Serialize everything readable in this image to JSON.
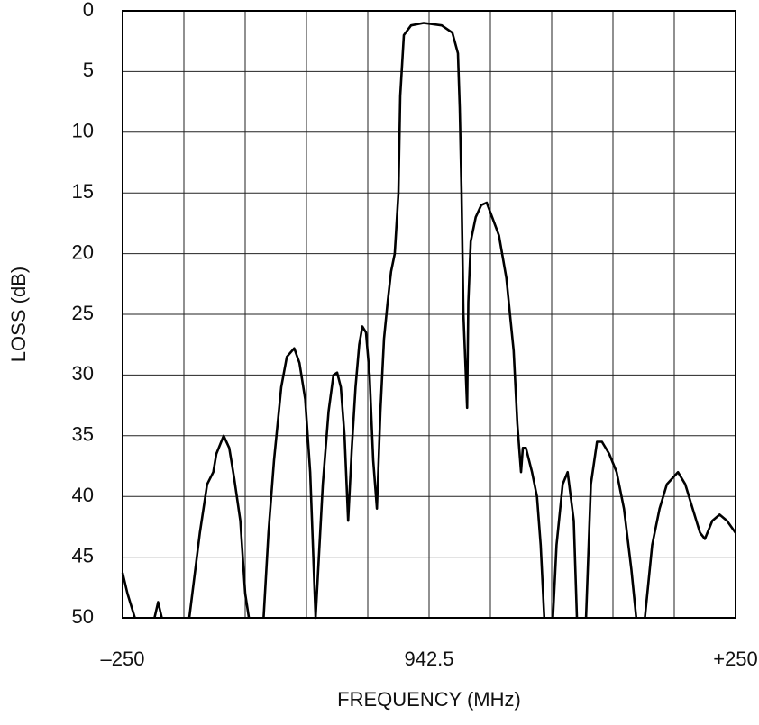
{
  "chart_data": {
    "type": "line",
    "xlabel": "FREQUENCY (MHz)",
    "ylabel": "LOSS (dB)",
    "x": [
      -250,
      -246,
      -240,
      null,
      -224,
      -221,
      -218,
      null,
      -195.6,
      -187,
      -181,
      -176,
      -173.5,
      -167.6,
      -163,
      -159,
      -154,
      -150,
      -147,
      null,
      -135,
      -131,
      -126.5,
      -120.6,
      -116,
      -110,
      -105.7,
      -101,
      -97,
      -92.6,
      -86.7,
      -82,
      -78,
      -75,
      -72,
      -69,
      -66,
      -63,
      -60,
      -57,
      -54.4,
      -51.5,
      -48.5,
      -45.6,
      -42.6,
      -39.7,
      -36.8,
      -33.8,
      -31,
      -28,
      -25,
      -23.5,
      -20.6,
      -14.7,
      -4.4,
      10.3,
      19,
      23.5,
      25,
      26.5,
      28,
      31,
      32,
      34,
      38,
      42.6,
      47,
      51.5,
      57,
      63,
      69,
      72,
      75,
      76.5,
      79,
      84,
      88,
      91,
      94,
      null,
      101,
      104,
      109,
      113,
      118,
      120.6,
      null,
      128,
      132,
      137,
      141,
      147,
      153,
      159,
      165,
      169,
      null,
      176,
      182,
      188,
      194,
      203,
      209,
      215,
      221,
      225,
      231,
      237,
      243,
      250
    ],
    "values": [
      46.3,
      48,
      50,
      null,
      50,
      48.7,
      50,
      null,
      50,
      43,
      39,
      38,
      36.5,
      35,
      36,
      38.5,
      42,
      48,
      50,
      null,
      50,
      43,
      37,
      31,
      28.5,
      27.8,
      29,
      32,
      38,
      50,
      39,
      33,
      30,
      29.8,
      31,
      35,
      42,
      36,
      31,
      27.5,
      26,
      26.5,
      30,
      37,
      41,
      33,
      27,
      24,
      21.5,
      20,
      15,
      7,
      2,
      1.2,
      1.0,
      1.2,
      1.8,
      3.5,
      8,
      15,
      25,
      32.7,
      24,
      19,
      17,
      16,
      15.8,
      17,
      18.5,
      22,
      28,
      34,
      38,
      36,
      36,
      38,
      40,
      44,
      50,
      null,
      50,
      44,
      39,
      38,
      42,
      50,
      null,
      50,
      39,
      35.5,
      35.5,
      36.5,
      38,
      41,
      46,
      50,
      null,
      50,
      44,
      41,
      39,
      38,
      39,
      41,
      43,
      43.5,
      42,
      41.5,
      42,
      43
    ],
    "color": "#000000",
    "xlim": [
      -250,
      250
    ],
    "xticks": [
      {
        "value": -250,
        "label": "–250"
      },
      {
        "value": 0,
        "label": "942.5"
      },
      {
        "value": 250,
        "label": "+250"
      }
    ],
    "xgrid": [
      -250,
      -200,
      -150,
      -100,
      -50,
      0,
      50,
      100,
      150,
      200,
      250
    ],
    "ylim": [
      50,
      0
    ],
    "yticks": [
      0,
      5,
      10,
      15,
      20,
      25,
      30,
      35,
      40,
      45,
      50
    ],
    "grid": true
  }
}
